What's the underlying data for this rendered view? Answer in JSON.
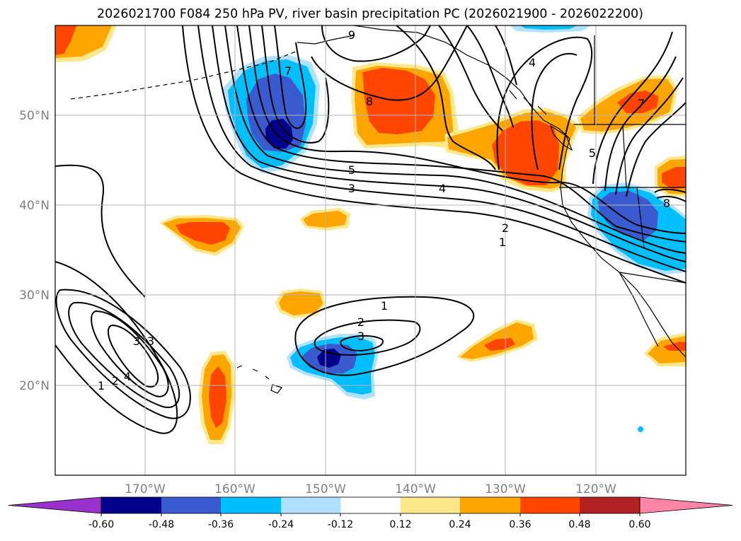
{
  "title": "2026021700 F084 250 hPa PV, river basin precipitation PC (2026021900 - 2026022200)",
  "map": {
    "projection": "PlateCarree",
    "lon_range": [
      -180,
      -110
    ],
    "lat_range": [
      10,
      60
    ],
    "lon_ticks": [
      {
        "value": -170,
        "label": "170°W"
      },
      {
        "value": -160,
        "label": "160°W"
      },
      {
        "value": -150,
        "label": "150°W"
      },
      {
        "value": -140,
        "label": "140°W"
      },
      {
        "value": -130,
        "label": "130°W"
      },
      {
        "value": -120,
        "label": "120°W"
      }
    ],
    "lat_ticks": [
      {
        "value": 50,
        "label": "50°N"
      },
      {
        "value": 40,
        "label": "40°N"
      },
      {
        "value": 30,
        "label": "30°N"
      },
      {
        "value": 20,
        "label": "20°N"
      }
    ],
    "gridlines": true,
    "contour_labels": [
      "9",
      "8",
      "7",
      "5",
      "4",
      "3",
      "2",
      "1",
      "1",
      "2",
      "3",
      "1",
      "2",
      "4",
      "3",
      "3",
      "7",
      "5",
      "8",
      "4"
    ]
  },
  "colorbar": {
    "ticks": [
      "-0.60",
      "-0.48",
      "-0.36",
      "-0.24",
      "-0.12",
      "0.12",
      "0.24",
      "0.36",
      "0.48",
      "0.60"
    ],
    "colors": {
      "under": "#9932cc",
      "b1": "#00008b",
      "b2": "#3a5bd0",
      "b3": "#00bfff",
      "b4": "#b0e2ff",
      "b5": "#ffffff",
      "b6": "#ffe88a",
      "b7": "#ffa500",
      "b8": "#ff4500",
      "b9": "#b22222",
      "over": "#ff85a8"
    }
  }
}
